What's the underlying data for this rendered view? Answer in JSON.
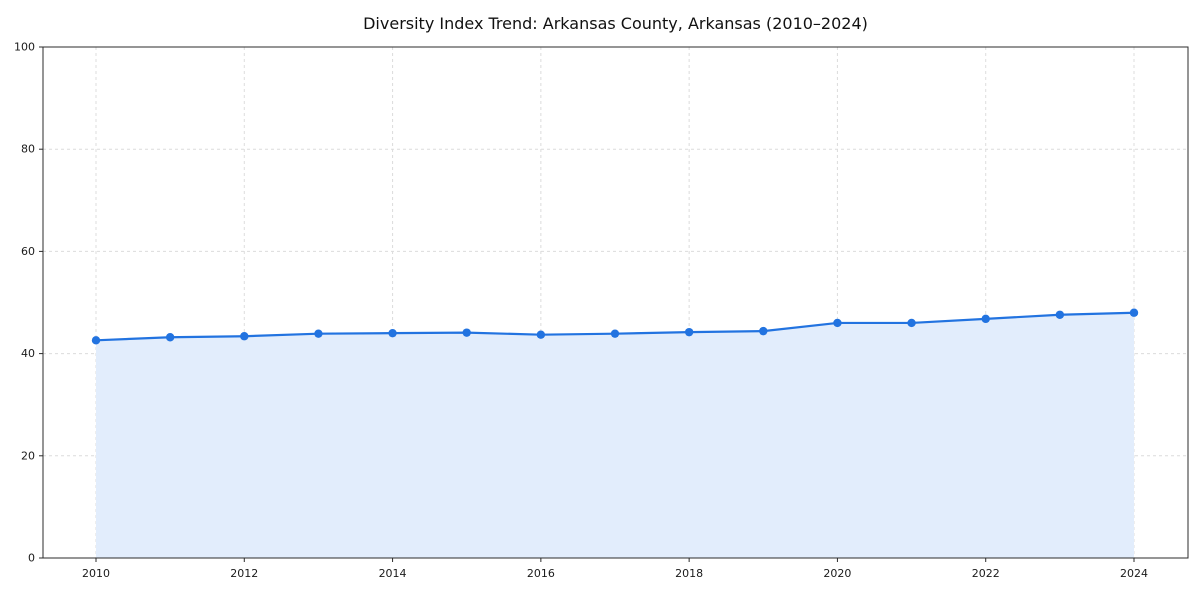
{
  "chart_data": {
    "type": "line",
    "title": "Diversity Index Trend: Arkansas County, Arkansas (2010–2024)",
    "x": [
      2010,
      2011,
      2012,
      2013,
      2014,
      2015,
      2016,
      2017,
      2018,
      2019,
      2020,
      2021,
      2022,
      2023,
      2024
    ],
    "series": [
      {
        "name": "Diversity Index",
        "values": [
          42.6,
          43.2,
          43.4,
          43.9,
          44.0,
          44.1,
          43.7,
          43.9,
          44.2,
          44.4,
          46.0,
          46.0,
          46.8,
          47.6,
          48.0
        ]
      }
    ],
    "xlabel": "",
    "ylabel": "",
    "ylim": [
      0,
      100
    ],
    "yticks": [
      0,
      20,
      40,
      60,
      80,
      100
    ],
    "xticks": [
      2010,
      2012,
      2014,
      2016,
      2018,
      2020,
      2022,
      2024
    ],
    "grid": "dashed",
    "legend_position": "none",
    "colors": {
      "line": "#2273e0",
      "marker": "#2273e0",
      "fill": "#e2edfc",
      "grid": "#dcdcdc",
      "spine": "#2b2b2b",
      "tick_label": "#1a1a1a"
    }
  }
}
